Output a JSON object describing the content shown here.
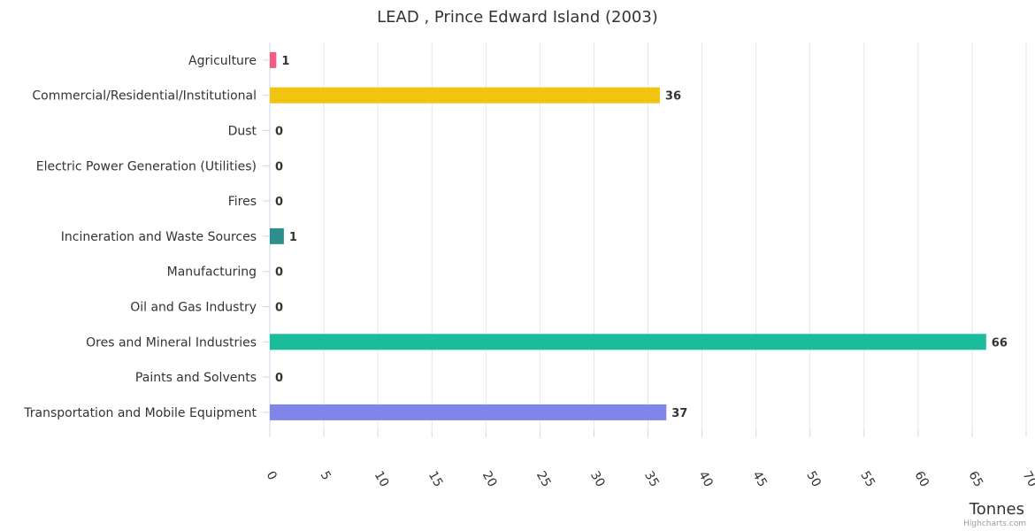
{
  "chart_data": {
    "type": "bar",
    "orientation": "horizontal",
    "title": "LEAD , Prince Edward Island (2003)",
    "xlabel": "Tonnes",
    "categories": [
      "Agriculture",
      "Commercial/Residential/Institutional",
      "Dust",
      "Electric Power Generation (Utilities)",
      "Fires",
      "Incineration and Waste Sources",
      "Manufacturing",
      "Oil and Gas Industry",
      "Ores and Mineral Industries",
      "Paints and Solvents",
      "Transportation and Mobile Equipment"
    ],
    "values": [
      0.6,
      36.1,
      0,
      0,
      0,
      1.3,
      0,
      0,
      66.3,
      0,
      36.7
    ],
    "data_labels": [
      "1",
      "36",
      "0",
      "0",
      "0",
      "1",
      "0",
      "0",
      "66",
      "0",
      "37"
    ],
    "colors": [
      "#f15c80",
      "#f1c40f",
      "#2ecc71",
      "#9b59b6",
      "#e67e22",
      "#2f8f8f",
      "#34495e",
      "#e74c3c",
      "#1abc9c",
      "#3498db",
      "#8085e9"
    ],
    "xlim": [
      0,
      70
    ],
    "ticks": [
      0,
      5,
      10,
      15,
      20,
      25,
      30,
      35,
      40,
      45,
      50,
      55,
      60,
      65,
      70
    ],
    "grid": true,
    "legend": false
  },
  "credits": "Highcharts.com"
}
